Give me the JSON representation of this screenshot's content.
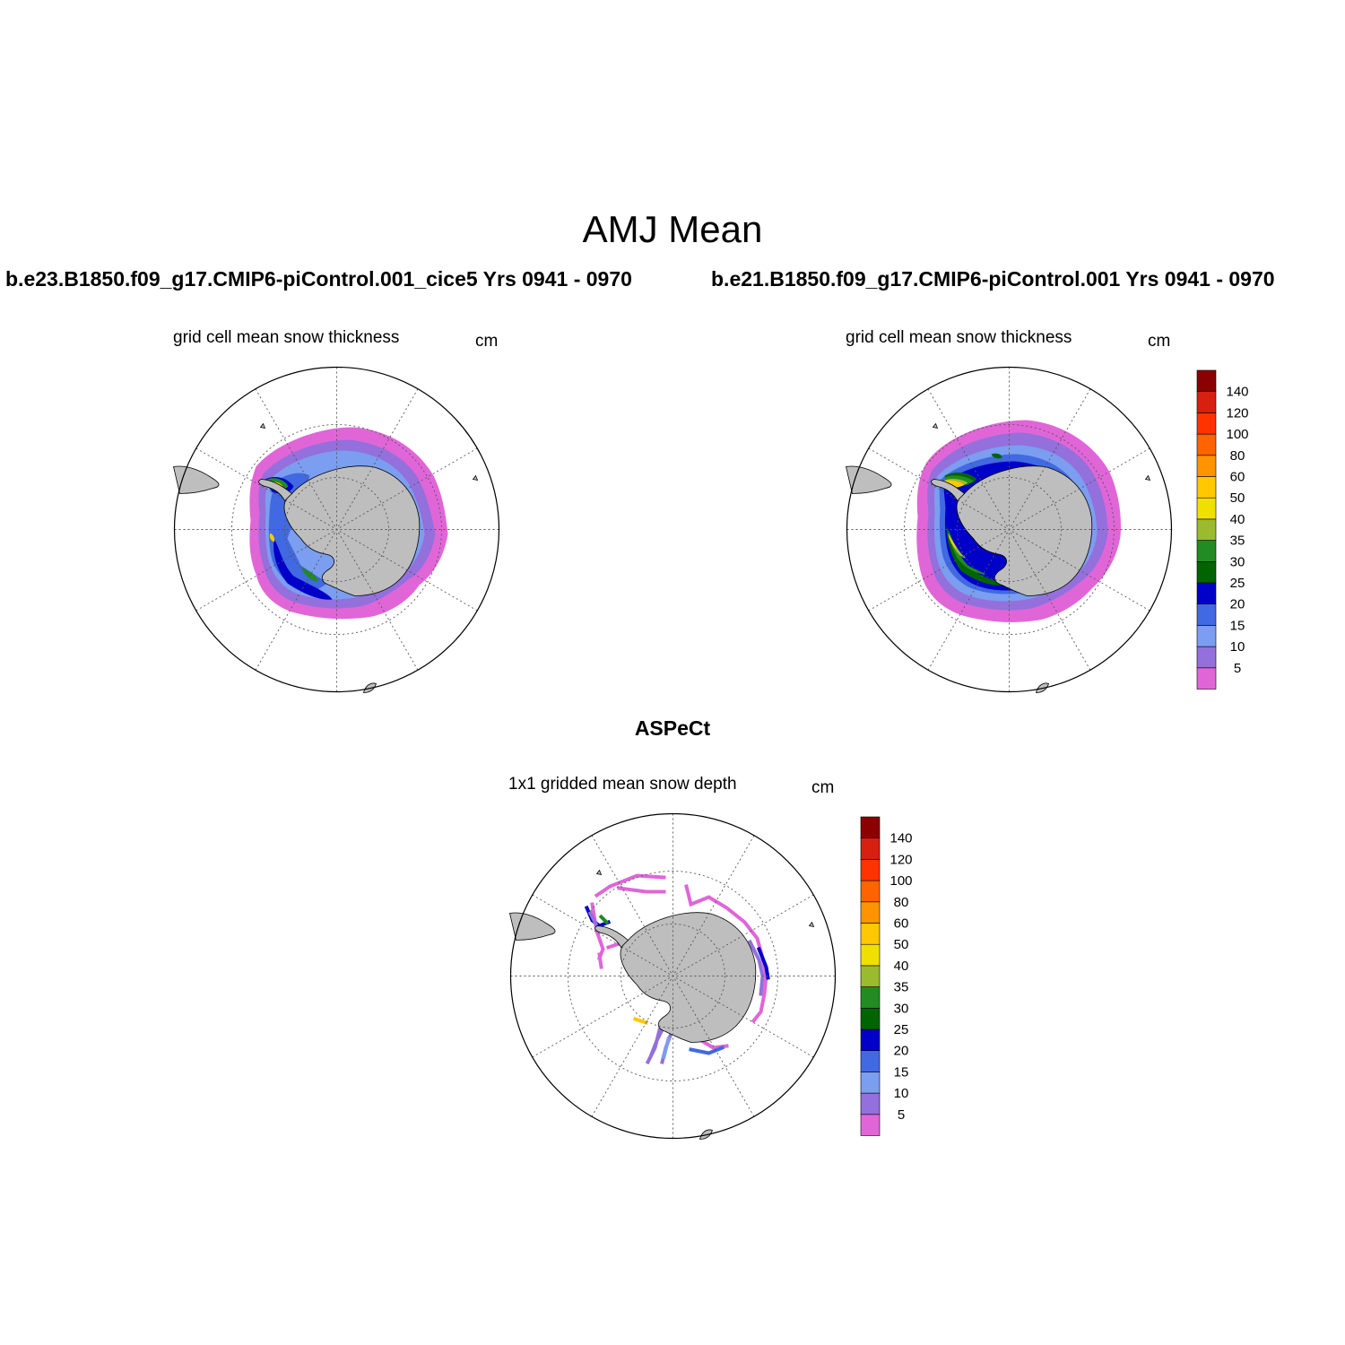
{
  "title": "AMJ Mean",
  "panels": [
    {
      "id": "model-cice5",
      "case_title": "b.e23.B1850.f09_g17.CMIP6-piControl.001_cice5  Yrs 0941 - 0970",
      "left_label": "grid cell mean snow thickness",
      "right_label": "cm"
    },
    {
      "id": "model-cice",
      "case_title": "b.e21.B1850.f09_g17.CMIP6-piControl.001  Yrs 0941 - 0970",
      "left_label": "grid cell mean snow thickness",
      "right_label": "cm"
    },
    {
      "id": "obs-aspect",
      "case_title": "ASPeCt",
      "left_label": "1x1 gridded mean snow depth",
      "right_label": "cm"
    }
  ],
  "colorbar": {
    "levels": [
      "5",
      "10",
      "15",
      "20",
      "25",
      "30",
      "35",
      "40",
      "50",
      "60",
      "80",
      "100",
      "120",
      "140"
    ],
    "colors": [
      "#e066d8",
      "#9370db",
      "#7b9ef0",
      "#4169e1",
      "#0000c8",
      "#006400",
      "#228b22",
      "#9bbb2e",
      "#f0e000",
      "#ffc800",
      "#ff9400",
      "#ff6400",
      "#ff3200",
      "#d72010",
      "#8b0000"
    ]
  },
  "map_colors": {
    "land": "#bebebe",
    "ocean": "#ffffff",
    "grid": "#555555"
  }
}
